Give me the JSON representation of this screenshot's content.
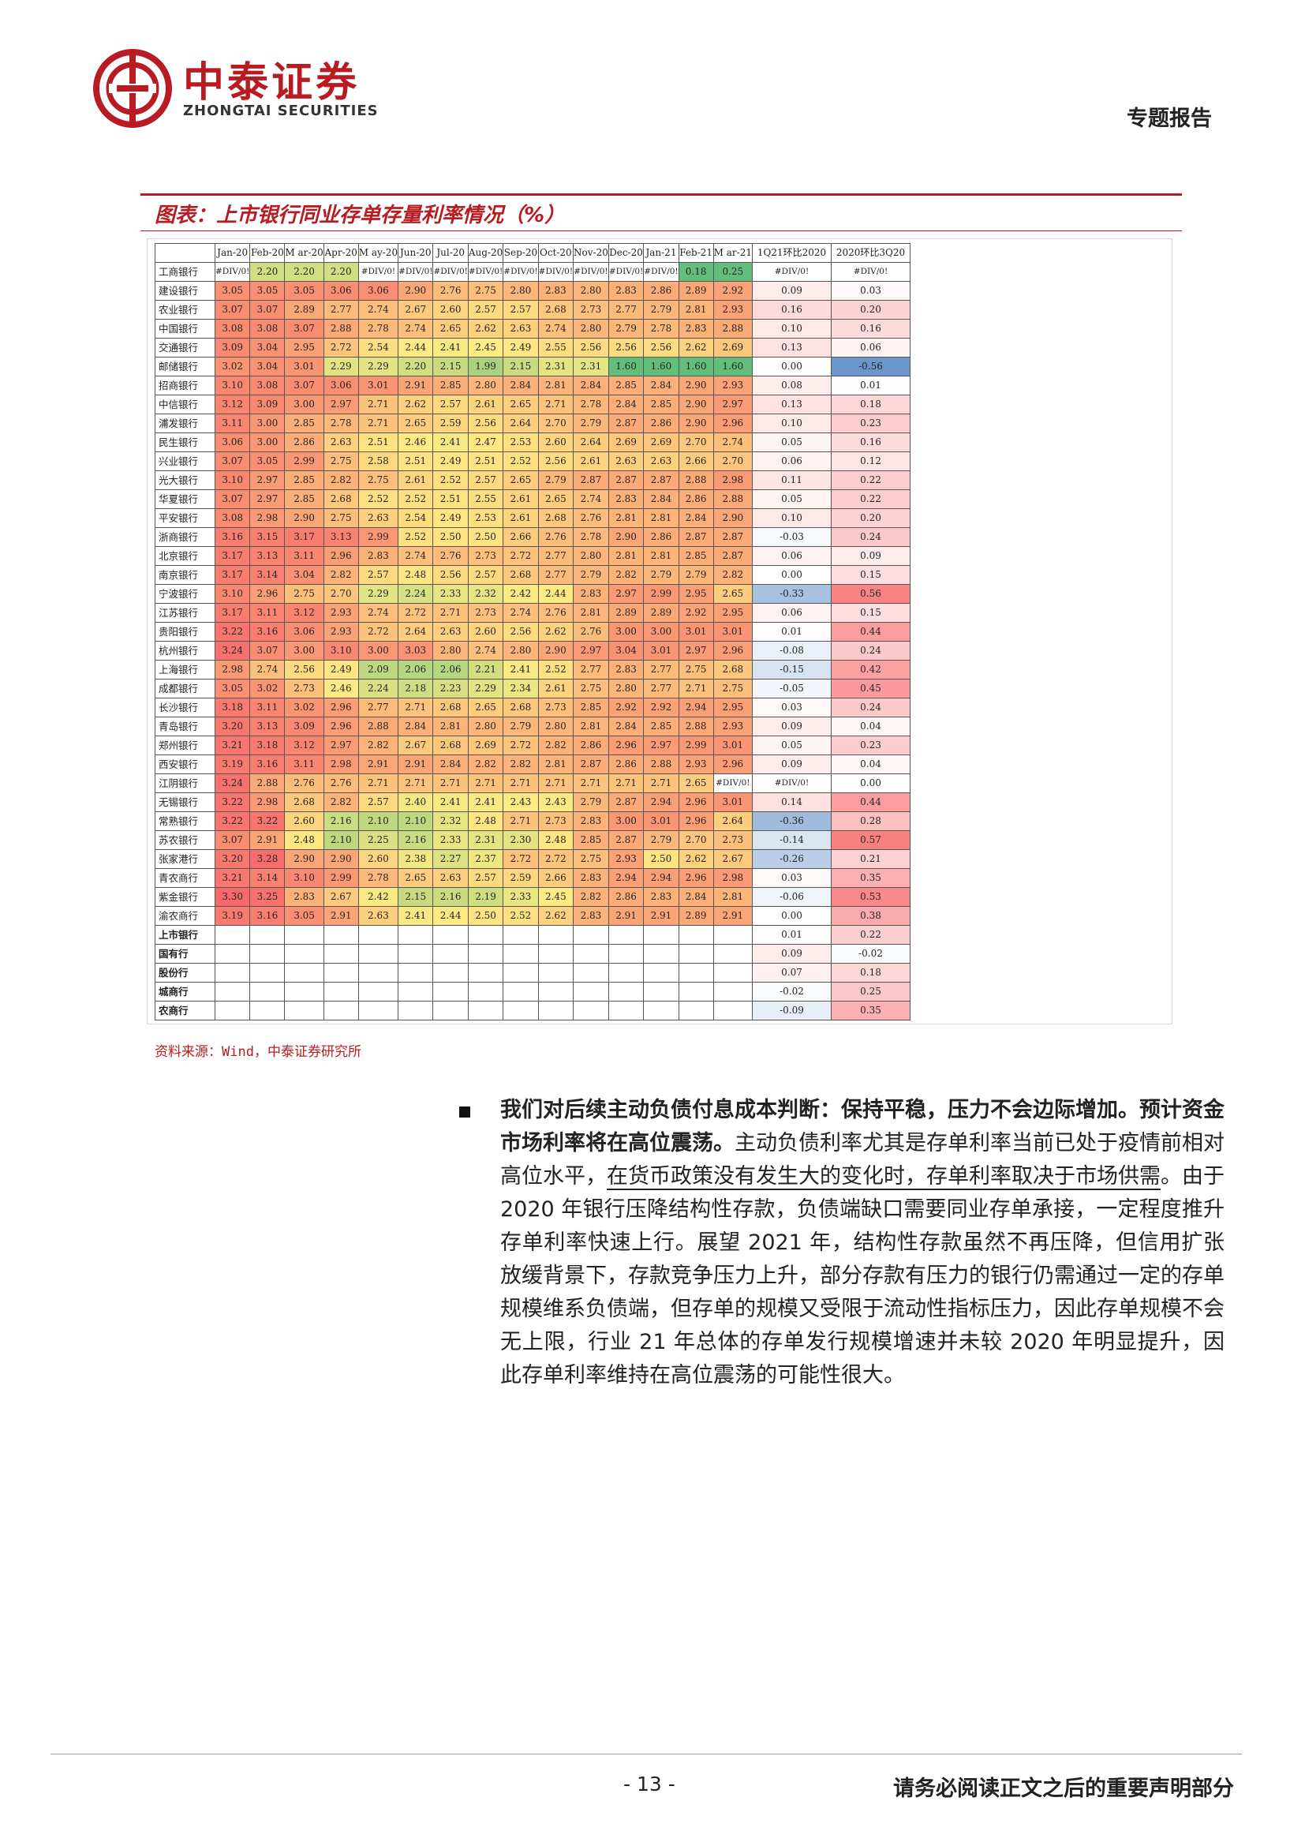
{
  "header": {
    "logo_cn": "中泰证券",
    "logo_en": "ZHONGTAI SECURITIES",
    "report_type": "专题报告"
  },
  "figure": {
    "title": "图表：上市银行同业存单存量利率情况（%）",
    "source": "资料来源：Wind，中泰证券研究所"
  },
  "chart_data": {
    "type": "table",
    "columns": [
      "",
      "Jan-20",
      "Feb-20",
      "M ar-20",
      "Apr-20",
      "M ay-20",
      "Jun-20",
      "Jul-20",
      "Aug-20",
      "Sep-20",
      "Oct-20",
      "Nov-20",
      "Dec-20",
      "Jan-21",
      "Feb-21",
      "M ar-21",
      "1Q21环比2020",
      "2020环比3Q20"
    ],
    "rows": [
      {
        "name": "工商银行",
        "values": [
          "#DIV/0!",
          "2.20",
          "2.20",
          "2.20",
          "#DIV/0!",
          "#DIV/0!",
          "#DIV/0!",
          "#DIV/0!",
          "#DIV/0!",
          "#DIV/0!",
          "#DIV/0!",
          "#DIV/0!",
          "#DIV/0!",
          "0.18",
          "0.25"
        ],
        "d1": "#DIV/0!",
        "d2": "#DIV/0!"
      },
      {
        "name": "建设银行",
        "values": [
          "3.05",
          "3.05",
          "3.05",
          "3.06",
          "3.06",
          "2.90",
          "2.76",
          "2.75",
          "2.80",
          "2.83",
          "2.80",
          "2.83",
          "2.86",
          "2.89",
          "2.92"
        ],
        "d1": "0.09",
        "d2": "0.03"
      },
      {
        "name": "农业银行",
        "values": [
          "3.07",
          "3.07",
          "2.89",
          "2.77",
          "2.74",
          "2.67",
          "2.60",
          "2.57",
          "2.57",
          "2.68",
          "2.73",
          "2.77",
          "2.79",
          "2.81",
          "2.93"
        ],
        "d1": "0.16",
        "d2": "0.20"
      },
      {
        "name": "中国银行",
        "values": [
          "3.08",
          "3.08",
          "3.07",
          "2.88",
          "2.78",
          "2.74",
          "2.65",
          "2.62",
          "2.63",
          "2.74",
          "2.80",
          "2.79",
          "2.78",
          "2.83",
          "2.88"
        ],
        "d1": "0.10",
        "d2": "0.16"
      },
      {
        "name": "交通银行",
        "values": [
          "3.09",
          "3.04",
          "2.95",
          "2.72",
          "2.54",
          "2.44",
          "2.41",
          "2.45",
          "2.49",
          "2.55",
          "2.56",
          "2.56",
          "2.56",
          "2.62",
          "2.69"
        ],
        "d1": "0.13",
        "d2": "0.06"
      },
      {
        "name": "邮储银行",
        "values": [
          "3.02",
          "3.04",
          "3.01",
          "2.29",
          "2.29",
          "2.20",
          "2.15",
          "1.99",
          "2.15",
          "2.31",
          "2.31",
          "1.60",
          "1.60",
          "1.60",
          "1.60"
        ],
        "d1": "0.00",
        "d2": "-0.56"
      },
      {
        "name": "招商银行",
        "values": [
          "3.10",
          "3.08",
          "3.07",
          "3.06",
          "3.01",
          "2.91",
          "2.85",
          "2.80",
          "2.84",
          "2.81",
          "2.84",
          "2.85",
          "2.84",
          "2.90",
          "2.93"
        ],
        "d1": "0.08",
        "d2": "0.01"
      },
      {
        "name": "中信银行",
        "values": [
          "3.12",
          "3.09",
          "3.00",
          "2.97",
          "2.71",
          "2.62",
          "2.57",
          "2.61",
          "2.65",
          "2.71",
          "2.78",
          "2.84",
          "2.85",
          "2.90",
          "2.97"
        ],
        "d1": "0.13",
        "d2": "0.18"
      },
      {
        "name": "浦发银行",
        "values": [
          "3.11",
          "3.00",
          "2.85",
          "2.78",
          "2.71",
          "2.65",
          "2.59",
          "2.56",
          "2.64",
          "2.70",
          "2.79",
          "2.87",
          "2.86",
          "2.90",
          "2.96"
        ],
        "d1": "0.10",
        "d2": "0.23"
      },
      {
        "name": "民生银行",
        "values": [
          "3.06",
          "3.00",
          "2.86",
          "2.63",
          "2.51",
          "2.46",
          "2.41",
          "2.47",
          "2.53",
          "2.60",
          "2.64",
          "2.69",
          "2.69",
          "2.70",
          "2.74"
        ],
        "d1": "0.05",
        "d2": "0.16"
      },
      {
        "name": "兴业银行",
        "values": [
          "3.07",
          "3.05",
          "2.99",
          "2.75",
          "2.58",
          "2.51",
          "2.49",
          "2.51",
          "2.52",
          "2.56",
          "2.61",
          "2.63",
          "2.63",
          "2.66",
          "2.70"
        ],
        "d1": "0.06",
        "d2": "0.12"
      },
      {
        "name": "光大银行",
        "values": [
          "3.10",
          "2.97",
          "2.85",
          "2.82",
          "2.75",
          "2.61",
          "2.52",
          "2.57",
          "2.65",
          "2.79",
          "2.87",
          "2.87",
          "2.87",
          "2.88",
          "2.98"
        ],
        "d1": "0.11",
        "d2": "0.22"
      },
      {
        "name": "华夏银行",
        "values": [
          "3.07",
          "2.97",
          "2.85",
          "2.68",
          "2.52",
          "2.52",
          "2.51",
          "2.55",
          "2.61",
          "2.65",
          "2.74",
          "2.83",
          "2.84",
          "2.86",
          "2.88"
        ],
        "d1": "0.05",
        "d2": "0.22"
      },
      {
        "name": "平安银行",
        "values": [
          "3.08",
          "2.98",
          "2.90",
          "2.75",
          "2.63",
          "2.54",
          "2.49",
          "2.53",
          "2.61",
          "2.68",
          "2.76",
          "2.81",
          "2.81",
          "2.84",
          "2.90"
        ],
        "d1": "0.10",
        "d2": "0.20"
      },
      {
        "name": "浙商银行",
        "values": [
          "3.16",
          "3.15",
          "3.17",
          "3.13",
          "2.99",
          "2.52",
          "2.50",
          "2.50",
          "2.66",
          "2.76",
          "2.78",
          "2.90",
          "2.86",
          "2.87",
          "2.87"
        ],
        "d1": "-0.03",
        "d2": "0.24"
      },
      {
        "name": "北京银行",
        "values": [
          "3.17",
          "3.13",
          "3.11",
          "2.96",
          "2.83",
          "2.74",
          "2.76",
          "2.73",
          "2.72",
          "2.77",
          "2.80",
          "2.81",
          "2.81",
          "2.85",
          "2.87"
        ],
        "d1": "0.06",
        "d2": "0.09"
      },
      {
        "name": "南京银行",
        "values": [
          "3.17",
          "3.14",
          "3.04",
          "2.82",
          "2.57",
          "2.48",
          "2.56",
          "2.57",
          "2.68",
          "2.77",
          "2.79",
          "2.82",
          "2.79",
          "2.79",
          "2.82"
        ],
        "d1": "0.00",
        "d2": "0.15"
      },
      {
        "name": "宁波银行",
        "values": [
          "3.10",
          "2.96",
          "2.75",
          "2.70",
          "2.29",
          "2.24",
          "2.33",
          "2.32",
          "2.42",
          "2.44",
          "2.83",
          "2.97",
          "2.99",
          "2.95",
          "2.65"
        ],
        "d1": "-0.33",
        "d2": "0.56"
      },
      {
        "name": "江苏银行",
        "values": [
          "3.17",
          "3.11",
          "3.12",
          "2.93",
          "2.74",
          "2.72",
          "2.71",
          "2.73",
          "2.74",
          "2.76",
          "2.81",
          "2.89",
          "2.89",
          "2.92",
          "2.95"
        ],
        "d1": "0.06",
        "d2": "0.15"
      },
      {
        "name": "贵阳银行",
        "values": [
          "3.22",
          "3.16",
          "3.06",
          "2.93",
          "2.72",
          "2.64",
          "2.63",
          "2.60",
          "2.56",
          "2.62",
          "2.76",
          "3.00",
          "3.00",
          "3.01",
          "3.01"
        ],
        "d1": "0.01",
        "d2": "0.44"
      },
      {
        "name": "杭州银行",
        "values": [
          "3.24",
          "3.07",
          "3.00",
          "3.10",
          "3.00",
          "3.03",
          "2.80",
          "2.74",
          "2.80",
          "2.90",
          "2.97",
          "3.04",
          "3.01",
          "2.97",
          "2.96"
        ],
        "d1": "-0.08",
        "d2": "0.24"
      },
      {
        "name": "上海银行",
        "values": [
          "2.98",
          "2.74",
          "2.56",
          "2.49",
          "2.09",
          "2.06",
          "2.06",
          "2.21",
          "2.41",
          "2.52",
          "2.77",
          "2.83",
          "2.77",
          "2.75",
          "2.68"
        ],
        "d1": "-0.15",
        "d2": "0.42"
      },
      {
        "name": "成都银行",
        "values": [
          "3.05",
          "3.02",
          "2.73",
          "2.46",
          "2.24",
          "2.18",
          "2.23",
          "2.29",
          "2.34",
          "2.61",
          "2.75",
          "2.80",
          "2.77",
          "2.71",
          "2.75"
        ],
        "d1": "-0.05",
        "d2": "0.45"
      },
      {
        "name": "长沙银行",
        "values": [
          "3.18",
          "3.11",
          "3.02",
          "2.96",
          "2.77",
          "2.71",
          "2.68",
          "2.65",
          "2.68",
          "2.73",
          "2.85",
          "2.92",
          "2.92",
          "2.94",
          "2.95"
        ],
        "d1": "0.03",
        "d2": "0.24"
      },
      {
        "name": "青岛银行",
        "values": [
          "3.20",
          "3.13",
          "3.09",
          "2.96",
          "2.88",
          "2.84",
          "2.81",
          "2.80",
          "2.79",
          "2.80",
          "2.81",
          "2.84",
          "2.85",
          "2.88",
          "2.93"
        ],
        "d1": "0.09",
        "d2": "0.04"
      },
      {
        "name": "郑州银行",
        "values": [
          "3.21",
          "3.18",
          "3.12",
          "2.97",
          "2.82",
          "2.67",
          "2.68",
          "2.69",
          "2.72",
          "2.82",
          "2.86",
          "2.96",
          "2.97",
          "2.99",
          "3.01"
        ],
        "d1": "0.05",
        "d2": "0.23"
      },
      {
        "name": "西安银行",
        "values": [
          "3.19",
          "3.16",
          "3.11",
          "2.98",
          "2.91",
          "2.91",
          "2.84",
          "2.82",
          "2.82",
          "2.81",
          "2.87",
          "2.86",
          "2.88",
          "2.93",
          "2.96"
        ],
        "d1": "0.09",
        "d2": "0.04"
      },
      {
        "name": "江阴银行",
        "values": [
          "3.24",
          "2.88",
          "2.76",
          "2.76",
          "2.71",
          "2.71",
          "2.71",
          "2.71",
          "2.71",
          "2.71",
          "2.71",
          "2.71",
          "2.71",
          "2.65",
          "#DIV/0!"
        ],
        "d1": "#DIV/0!",
        "d2": "0.00"
      },
      {
        "name": "无锡银行",
        "values": [
          "3.22",
          "2.98",
          "2.68",
          "2.82",
          "2.57",
          "2.40",
          "2.41",
          "2.41",
          "2.43",
          "2.43",
          "2.79",
          "2.87",
          "2.94",
          "2.96",
          "3.01"
        ],
        "d1": "0.14",
        "d2": "0.44"
      },
      {
        "name": "常熟银行",
        "values": [
          "3.22",
          "3.22",
          "2.60",
          "2.16",
          "2.10",
          "2.10",
          "2.32",
          "2.48",
          "2.71",
          "2.73",
          "2.83",
          "3.00",
          "3.01",
          "2.96",
          "2.64"
        ],
        "d1": "-0.36",
        "d2": "0.28"
      },
      {
        "name": "苏农银行",
        "values": [
          "3.07",
          "2.91",
          "2.48",
          "2.10",
          "2.25",
          "2.16",
          "2.33",
          "2.31",
          "2.30",
          "2.48",
          "2.85",
          "2.87",
          "2.79",
          "2.70",
          "2.73"
        ],
        "d1": "-0.14",
        "d2": "0.57"
      },
      {
        "name": "张家港行",
        "values": [
          "3.20",
          "3.28",
          "2.90",
          "2.90",
          "2.60",
          "2.38",
          "2.27",
          "2.37",
          "2.72",
          "2.72",
          "2.75",
          "2.93",
          "2.50",
          "2.62",
          "2.67"
        ],
        "d1": "-0.26",
        "d2": "0.21"
      },
      {
        "name": "青农商行",
        "values": [
          "3.21",
          "3.14",
          "3.10",
          "2.99",
          "2.78",
          "2.65",
          "2.63",
          "2.57",
          "2.59",
          "2.66",
          "2.83",
          "2.94",
          "2.94",
          "2.96",
          "2.98"
        ],
        "d1": "0.03",
        "d2": "0.35"
      },
      {
        "name": "紫金银行",
        "values": [
          "3.30",
          "3.25",
          "2.83",
          "2.67",
          "2.42",
          "2.15",
          "2.16",
          "2.19",
          "2.33",
          "2.45",
          "2.82",
          "2.86",
          "2.83",
          "2.84",
          "2.81"
        ],
        "d1": "-0.06",
        "d2": "0.53"
      },
      {
        "name": "渝农商行",
        "values": [
          "3.19",
          "3.16",
          "3.05",
          "2.91",
          "2.63",
          "2.41",
          "2.44",
          "2.50",
          "2.52",
          "2.62",
          "2.83",
          "2.91",
          "2.91",
          "2.89",
          "2.91"
        ],
        "d1": "0.00",
        "d2": "0.38"
      }
    ],
    "aggregates": [
      {
        "name": "上市银行",
        "d1": "0.01",
        "d2": "0.22"
      },
      {
        "name": "国有行",
        "d1": "0.09",
        "d2": "-0.02"
      },
      {
        "name": "股份行",
        "d1": "0.07",
        "d2": "0.18"
      },
      {
        "name": "城商行",
        "d1": "-0.02",
        "d2": "0.25"
      },
      {
        "name": "农商行",
        "d1": "-0.09",
        "d2": "0.35"
      }
    ]
  },
  "body": {
    "bold_lead": "我们对后续主动负债付息成本判断：保持平稳，压力不会边际增加。预计资金市场利率将在高位震荡。",
    "text_a": "主动负债利率尤其是存单利率当前已处于疫情前相对高位水平，",
    "underlined": "在货币政策没有发生大的变化时，存单利率取决于市场供需",
    "text_b": "。由于 2020 年银行压降结构性存款，负债端缺口需要同业存单承接，一定程度推升存单利率快速上行。展望 2021 年，结构性存款虽然不再压降，但信用扩张放缓背景下，存款竞争压力上升，部分存款有压力的银行仍需通过一定的存单规模维系负债端，但存单的规模又受限于流动性指标压力，因此存单规模不会无上限，行业 21 年总体的存单发行规模增速并未较 2020 年明显提升，因此存单利率维持在高位震荡的可能性很大。"
  },
  "footer": {
    "page": "- 13 -",
    "disclaimer": "请务必阅读正文之后的重要声明部分"
  },
  "colors": {
    "brand_red": "#b81c22",
    "scale_high": "#f8696b",
    "scale_mid": "#ffeb84",
    "scale_low": "#63be7b",
    "bar_blue": "#5a8ac6"
  }
}
